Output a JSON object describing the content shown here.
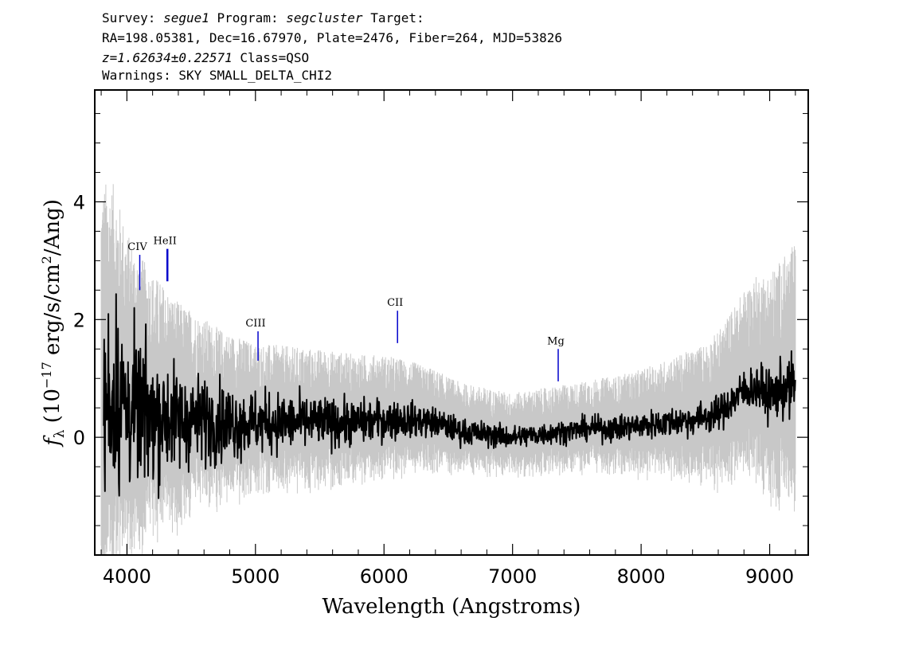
{
  "header": {
    "line1": {
      "survey_label": "Survey:",
      "survey": "segue1",
      "program_label": "Program:",
      "program": "segcluster",
      "target_label": "Target:"
    },
    "line2": "RA=198.05381, Dec=16.67970, Plate=2476, Fiber=264, MJD=53826",
    "line3": {
      "z": "z=1.62634±0.22571",
      "cls": "Class=QSO"
    },
    "line4": "Warnings: SKY SMALL_DELTA_CHI2"
  },
  "chart_data": {
    "type": "line",
    "title": "",
    "xlabel": "Wavelength (Angstroms)",
    "ylabel_prefix": "f",
    "ylabel_sub": "λ",
    "ylabel_main": " (10",
    "ylabel_exp": "−17",
    "ylabel_rest": " erg/s/cm",
    "ylabel_exp2": "2",
    "ylabel_end": "/Ang)",
    "xlim": [
      3750,
      9300
    ],
    "ylim": [
      -2.0,
      5.9
    ],
    "x_ticks": [
      4000,
      5000,
      6000,
      7000,
      8000,
      9000
    ],
    "x_tick_labels": [
      "4000",
      "5000",
      "6000",
      "7000",
      "8000",
      "9000"
    ],
    "y_ticks": [
      0,
      2,
      4
    ],
    "y_tick_labels": [
      "0",
      "2",
      "4"
    ],
    "grid": false,
    "series": [
      {
        "role": "noise/error band",
        "color": "#c8c8c8",
        "x_range": [
          3800,
          9200
        ],
        "envelope_x": [
          3800,
          3900,
          4000,
          4200,
          4400,
          4700,
          5000,
          5500,
          6000,
          6500,
          7000,
          7500,
          8000,
          8500,
          8800,
          9000,
          9200
        ],
        "envelope_halfwidth": [
          4.0,
          3.6,
          3.0,
          2.4,
          2.0,
          1.6,
          1.35,
          1.25,
          1.1,
          0.85,
          0.75,
          0.8,
          0.95,
          1.25,
          1.7,
          2.1,
          2.4
        ]
      },
      {
        "role": "flux",
        "color": "#000000",
        "x": [
          3820,
          3850,
          3900,
          3950,
          4000,
          4100,
          4200,
          4300,
          4400,
          4500,
          4600,
          4800,
          5000,
          5200,
          5400,
          5600,
          5800,
          6000,
          6200,
          6400,
          6600,
          6800,
          7000,
          7200,
          7400,
          7600,
          7800,
          8000,
          8200,
          8400,
          8600,
          8700,
          8800,
          8900,
          9000,
          9100,
          9200
        ],
        "y": [
          0.4,
          0.6,
          0.7,
          0.6,
          0.5,
          0.4,
          0.4,
          0.35,
          0.3,
          0.3,
          0.3,
          0.25,
          0.25,
          0.25,
          0.25,
          0.25,
          0.25,
          0.3,
          0.3,
          0.25,
          0.1,
          0.05,
          0.0,
          0.05,
          0.1,
          0.15,
          0.15,
          0.2,
          0.25,
          0.3,
          0.4,
          0.6,
          0.8,
          0.85,
          0.7,
          0.8,
          0.9
        ],
        "scatter_x": [
          3820,
          3900,
          4000,
          4200,
          4500,
          5000,
          5500,
          6000,
          6500,
          7000,
          7500,
          8000,
          8500,
          8800,
          9000,
          9200
        ],
        "scatter_halfwidth": [
          2.4,
          2.2,
          1.8,
          1.4,
          1.0,
          0.7,
          0.55,
          0.45,
          0.3,
          0.25,
          0.25,
          0.3,
          0.35,
          0.45,
          0.55,
          0.7
        ]
      }
    ],
    "line_markers": [
      {
        "label": "CIV",
        "x": 4100,
        "y_bottom": 2.5,
        "y_top": 3.1,
        "color": "#0000cc"
      },
      {
        "label": "HeII",
        "x": 4315,
        "y_bottom": 2.65,
        "y_top": 3.2,
        "color": "#0000cc"
      },
      {
        "label": "CIII",
        "x": 5020,
        "y_bottom": 1.3,
        "y_top": 1.8,
        "color": "#0000cc"
      },
      {
        "label": "CII",
        "x": 6105,
        "y_bottom": 1.6,
        "y_top": 2.15,
        "color": "#0000cc"
      },
      {
        "label": "Mg",
        "x": 7355,
        "y_bottom": 0.95,
        "y_top": 1.5,
        "color": "#0000cc"
      }
    ]
  }
}
